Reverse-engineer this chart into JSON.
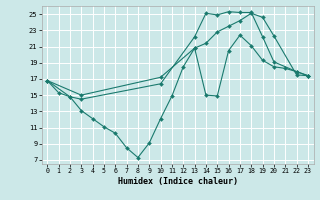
{
  "xlabel": "Humidex (Indice chaleur)",
  "bg_color": "#cce8e8",
  "grid_color": "#ffffff",
  "line_color": "#1a7a6e",
  "xlim": [
    -0.5,
    23.5
  ],
  "ylim": [
    6.5,
    26.0
  ],
  "xticks": [
    0,
    1,
    2,
    3,
    4,
    5,
    6,
    7,
    8,
    9,
    10,
    11,
    12,
    13,
    14,
    15,
    16,
    17,
    18,
    19,
    20,
    21,
    22,
    23
  ],
  "yticks": [
    7,
    9,
    11,
    13,
    15,
    17,
    19,
    21,
    23,
    25
  ],
  "line1_x": [
    0,
    1,
    2,
    3,
    4,
    5,
    6,
    7,
    8,
    9,
    10,
    11,
    12,
    13,
    14,
    15,
    16,
    17,
    18,
    19,
    20,
    21,
    22,
    23
  ],
  "line1_y": [
    16.8,
    15.3,
    14.8,
    13.1,
    12.1,
    11.1,
    10.3,
    8.5,
    7.3,
    9.1,
    12.1,
    14.9,
    18.5,
    20.8,
    15.0,
    14.9,
    20.5,
    22.4,
    21.1,
    19.3,
    18.5,
    18.3,
    17.9,
    17.4
  ],
  "line2_x": [
    0,
    2,
    3,
    10,
    13,
    14,
    15,
    16,
    17,
    18,
    19,
    20,
    22,
    23
  ],
  "line2_y": [
    16.8,
    14.8,
    14.5,
    16.4,
    22.2,
    25.1,
    24.9,
    25.3,
    25.2,
    25.2,
    22.2,
    19.1,
    17.9,
    17.4
  ],
  "line3_x": [
    0,
    3,
    10,
    13,
    14,
    15,
    16,
    17,
    18,
    19,
    20,
    22,
    23
  ],
  "line3_y": [
    16.8,
    15.0,
    17.2,
    20.8,
    21.4,
    22.8,
    23.5,
    24.2,
    25.1,
    24.6,
    22.3,
    17.5,
    17.4
  ]
}
